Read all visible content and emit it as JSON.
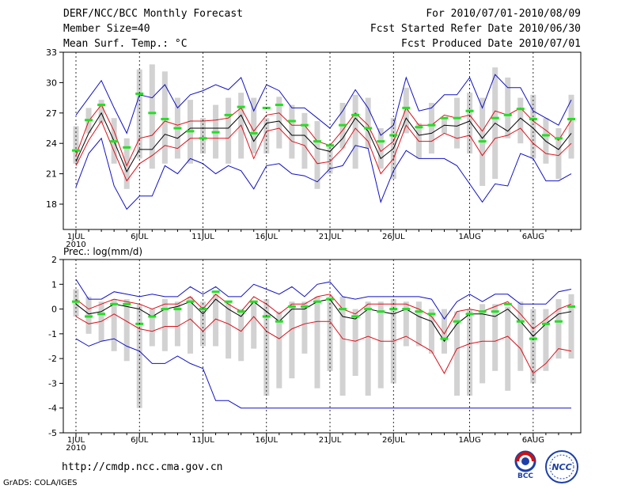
{
  "header": {
    "title": "DERF/NCC/BCC Monthly Forecast",
    "member_size": "Member Size=40",
    "variable": "Mean Surf. Temp.: °C",
    "period": "For 2010/07/01-2010/08/09",
    "started": "Fcst Started Refer Date 2010/06/30",
    "produced": "Fcst Produced Date 2010/07/01"
  },
  "colors": {
    "box": "#d2d2d2",
    "mean": "#000000",
    "spread": "#e0101a",
    "extreme": "#1010c8",
    "obs": "#22e022"
  },
  "chart_data": [
    {
      "type": "line",
      "title": "Mean Surf. Temp.: °C",
      "ylabel": "Mean Surf. Temp.: °C",
      "ylim": [
        15.5,
        33
      ],
      "yticks": [
        "18",
        "21",
        "24",
        "27",
        "30",
        "33"
      ],
      "ytick_values": [
        18,
        21,
        24,
        27,
        30,
        33
      ],
      "xtick_labels": [
        "1JUL",
        "6JUL",
        "11JUL",
        "16JUL",
        "21JUL",
        "26JUL",
        "1AUG",
        "6AUG"
      ],
      "xtick_days": [
        1,
        6,
        11,
        16,
        21,
        26,
        32,
        37
      ],
      "x_year_label": "2010",
      "days": [
        1,
        2,
        3,
        4,
        5,
        6,
        7,
        8,
        9,
        10,
        11,
        12,
        13,
        14,
        15,
        16,
        17,
        18,
        19,
        20,
        21,
        22,
        23,
        24,
        25,
        26,
        27,
        28,
        29,
        30,
        31,
        32,
        33,
        34,
        35,
        36,
        37,
        38,
        39,
        40
      ],
      "box_top": [
        25.7,
        27.5,
        28.3,
        26.5,
        24.5,
        31.3,
        31.8,
        31.1,
        28.5,
        28.3,
        26.5,
        27.8,
        28.5,
        29.0,
        28.5,
        26.5,
        28.6,
        27.8,
        27.0,
        26.2,
        23.8,
        28.0,
        28.8,
        28.5,
        25.5,
        26.5,
        29.5,
        26.0,
        28.0,
        26.5,
        28.5,
        29.0,
        28.5,
        31.5,
        30.5,
        28.5,
        28.8,
        26.5,
        25.5,
        28.8
      ],
      "box_bottom": [
        22.0,
        25.0,
        26.0,
        22.0,
        19.5,
        22.5,
        21.5,
        22.0,
        22.5,
        22.0,
        23.0,
        22.5,
        22.0,
        22.5,
        23.0,
        23.0,
        23.5,
        22.5,
        21.5,
        19.5,
        21.0,
        23.5,
        21.5,
        23.5,
        21.5,
        20.5,
        25.0,
        22.5,
        23.0,
        25.0,
        23.5,
        23.0,
        19.8,
        20.5,
        24.5,
        24.0,
        22.5,
        22.0,
        20.5,
        22.5
      ],
      "max": [
        26.8,
        28.5,
        30.2,
        27.5,
        25.0,
        28.8,
        28.5,
        29.8,
        27.5,
        28.8,
        29.2,
        29.8,
        29.3,
        30.5,
        27.2,
        29.8,
        29.2,
        27.5,
        27.5,
        26.5,
        25.5,
        27.2,
        29.3,
        27.5,
        24.8,
        25.8,
        30.5,
        27.2,
        27.5,
        28.8,
        28.8,
        30.5,
        27.5,
        30.8,
        29.5,
        29.5,
        27.2,
        26.5,
        25.8,
        28.3
      ],
      "spread_hi": [
        22.8,
        26.2,
        27.8,
        25.2,
        21.8,
        24.5,
        24.8,
        26.2,
        25.8,
        26.2,
        26.2,
        26.3,
        26.5,
        27.5,
        25.2,
        26.8,
        27.0,
        25.8,
        25.8,
        24.2,
        23.8,
        25.3,
        27.0,
        25.8,
        23.2,
        24.2,
        27.5,
        25.8,
        25.8,
        26.8,
        26.5,
        26.8,
        25.2,
        27.2,
        26.8,
        27.5,
        26.2,
        25.3,
        24.3,
        26.3
      ],
      "mean": [
        22.2,
        25.0,
        27.0,
        24.2,
        21.2,
        23.4,
        23.4,
        24.9,
        24.5,
        25.5,
        25.5,
        25.5,
        25.5,
        26.8,
        24.2,
        26.0,
        26.2,
        24.8,
        24.8,
        23.5,
        23.2,
        24.5,
        26.5,
        25.2,
        22.5,
        23.5,
        26.5,
        24.8,
        25.0,
        25.8,
        25.7,
        26.2,
        24.5,
        26.0,
        25.2,
        26.5,
        25.5,
        24.2,
        23.4,
        25.0
      ],
      "spread_lo": [
        21.8,
        24.3,
        26.2,
        23.2,
        20.3,
        22.0,
        22.8,
        23.8,
        23.5,
        24.5,
        24.5,
        24.5,
        24.5,
        25.8,
        22.5,
        25.2,
        25.5,
        24.2,
        23.8,
        22.0,
        22.2,
        23.5,
        25.5,
        24.2,
        21.0,
        22.5,
        25.8,
        24.2,
        24.2,
        25.0,
        24.5,
        24.8,
        22.8,
        24.5,
        24.8,
        25.5,
        24.0,
        23.0,
        22.8,
        24.0
      ],
      "min": [
        19.7,
        23.0,
        24.5,
        19.8,
        17.5,
        18.8,
        18.8,
        21.8,
        21.0,
        22.5,
        22.0,
        21.0,
        21.8,
        21.3,
        19.5,
        21.8,
        22.0,
        21.0,
        20.8,
        20.2,
        21.5,
        21.8,
        23.8,
        23.5,
        18.2,
        21.3,
        23.3,
        22.5,
        22.5,
        22.5,
        21.8,
        20.0,
        18.2,
        20.0,
        19.8,
        23.0,
        22.5,
        20.3,
        20.3,
        21.0
      ],
      "obs": [
        23.3,
        26.3,
        27.8,
        24.2,
        23.6,
        28.9,
        27.0,
        26.4,
        25.5,
        25.2,
        24.5,
        25.1,
        26.8,
        27.6,
        25.0,
        27.5,
        27.8,
        26.2,
        25.8,
        24.2,
        23.8,
        25.8,
        26.8,
        25.5,
        24.2,
        24.8,
        27.5,
        25.6,
        25.8,
        26.5,
        26.5,
        27.2,
        24.2,
        26.5,
        26.8,
        27.4,
        26.4,
        24.8,
        24.5,
        26.4
      ]
    },
    {
      "type": "line",
      "title": "Prec.: log(mm/d)",
      "ylabel": "Prec.: log(mm/d)",
      "ylim": [
        -5,
        2
      ],
      "yticks": [
        "-5",
        "-4",
        "-3",
        "-2",
        "-1",
        "0",
        "1",
        "2"
      ],
      "ytick_values": [
        -5,
        -4,
        -3,
        -2,
        -1,
        0,
        1,
        2
      ],
      "xtick_labels": [
        "1JUL",
        "6JUL",
        "11JUL",
        "16JUL",
        "21JUL",
        "26JUL",
        "1AUG",
        "6AUG"
      ],
      "xtick_days": [
        1,
        6,
        11,
        16,
        21,
        26,
        32,
        37
      ],
      "x_year_label": "2010",
      "days": [
        1,
        2,
        3,
        4,
        5,
        6,
        7,
        8,
        9,
        10,
        11,
        12,
        13,
        14,
        15,
        16,
        17,
        18,
        19,
        20,
        21,
        22,
        23,
        24,
        25,
        26,
        27,
        28,
        29,
        30,
        31,
        32,
        33,
        34,
        35,
        36,
        37,
        38,
        39,
        40
      ],
      "box_top": [
        0.8,
        0.5,
        0.3,
        0.4,
        0.4,
        0.2,
        0.0,
        0.4,
        0.3,
        0.5,
        0.3,
        0.6,
        0.3,
        0.0,
        0.3,
        0.4,
        -0.1,
        0.3,
        0.3,
        0.5,
        0.5,
        0.5,
        0.0,
        0.3,
        0.3,
        0.4,
        0.3,
        0.3,
        0.0,
        0.0,
        -0.1,
        0.0,
        0.2,
        0.2,
        0.1,
        0.3,
        0.0,
        0.0,
        0.4,
        0.6
      ],
      "box_bottom": [
        -0.3,
        -1.0,
        -1.3,
        -1.7,
        -2.1,
        -4.0,
        -1.5,
        -1.7,
        -1.5,
        -1.8,
        -1.5,
        -1.5,
        -2.0,
        -2.1,
        -1.6,
        -3.5,
        -3.2,
        -2.8,
        -1.8,
        -3.2,
        -2.5,
        -3.5,
        -2.7,
        -3.5,
        -3.2,
        -3.0,
        -1.5,
        -1.5,
        -1.8,
        -1.8,
        -3.5,
        -3.5,
        -3.0,
        -2.5,
        -3.3,
        -2.5,
        -3.0,
        -2.5,
        -2.0,
        -2.0
      ],
      "max": [
        1.2,
        0.4,
        0.4,
        0.7,
        0.6,
        0.5,
        0.6,
        0.5,
        0.5,
        0.9,
        0.6,
        0.9,
        0.5,
        0.5,
        1.0,
        0.8,
        0.6,
        0.9,
        0.5,
        1.0,
        1.1,
        0.5,
        0.4,
        0.5,
        0.5,
        0.5,
        0.5,
        0.5,
        0.4,
        -0.4,
        0.3,
        0.6,
        0.3,
        0.6,
        0.6,
        0.2,
        0.2,
        0.2,
        0.7,
        0.8
      ],
      "spread_hi": [
        0.4,
        0.0,
        0.2,
        0.4,
        0.3,
        0.2,
        0.0,
        0.2,
        0.2,
        0.5,
        0.0,
        0.6,
        0.2,
        -0.1,
        0.5,
        0.2,
        -0.2,
        0.2,
        0.2,
        0.5,
        0.6,
        0.0,
        -0.2,
        0.2,
        0.2,
        0.2,
        0.2,
        0.0,
        -0.3,
        -1.0,
        -0.1,
        0.0,
        -0.1,
        0.1,
        0.3,
        -0.2,
        -0.8,
        -0.4,
        0.0,
        0.2
      ],
      "mean": [
        0.2,
        -0.2,
        -0.1,
        0.2,
        0.1,
        0.0,
        -0.3,
        0.0,
        0.1,
        0.3,
        -0.2,
        0.4,
        0.0,
        -0.3,
        0.3,
        -0.1,
        -0.5,
        0.0,
        0.0,
        0.3,
        0.4,
        -0.3,
        -0.4,
        0.0,
        -0.1,
        -0.2,
        0.0,
        -0.3,
        -0.5,
        -1.3,
        -0.6,
        -0.2,
        -0.2,
        -0.3,
        0.0,
        -0.5,
        -1.1,
        -0.6,
        -0.2,
        -0.1
      ],
      "spread_lo": [
        -0.3,
        -0.6,
        -0.5,
        -0.2,
        -0.5,
        -0.8,
        -0.9,
        -0.7,
        -0.7,
        -0.4,
        -0.9,
        -0.4,
        -0.6,
        -0.9,
        -0.3,
        -0.9,
        -1.2,
        -0.8,
        -0.6,
        -0.5,
        -0.5,
        -1.2,
        -1.3,
        -1.1,
        -1.3,
        -1.3,
        -1.1,
        -1.4,
        -1.7,
        -2.6,
        -1.6,
        -1.4,
        -1.3,
        -1.3,
        -1.1,
        -1.6,
        -2.6,
        -2.2,
        -1.6,
        -1.7
      ],
      "min": [
        -1.2,
        -1.5,
        -1.3,
        -1.2,
        -1.5,
        -1.7,
        -2.2,
        -2.2,
        -1.9,
        -2.2,
        -2.4,
        -3.7,
        -3.7,
        -4.0,
        -4.0,
        -4.0,
        -4.0,
        -4.0,
        -4.0,
        -4.0,
        -4.0,
        -4.0,
        -4.0,
        -4.0,
        -4.0,
        -4.0,
        -4.0,
        -4.0,
        -4.0,
        -4.0,
        -4.0,
        -4.0,
        -4.0,
        -4.0,
        -4.0,
        -4.0,
        -4.0,
        -4.0,
        -4.0,
        -4.0
      ],
      "obs": [
        0.3,
        -0.3,
        -0.2,
        0.2,
        0.2,
        -0.6,
        -0.3,
        0.0,
        0.0,
        0.3,
        0.0,
        0.7,
        0.3,
        -0.1,
        0.3,
        -0.3,
        -0.5,
        0.1,
        0.1,
        0.3,
        0.4,
        0.0,
        -0.3,
        0.0,
        -0.1,
        0.0,
        0.0,
        -0.1,
        -0.2,
        -1.2,
        -0.5,
        -0.2,
        -0.1,
        -0.1,
        0.2,
        -0.5,
        -1.2,
        -0.6,
        -0.5,
        0.1
      ]
    }
  ],
  "footer": {
    "url": "http://cmdp.ncc.cma.gov.cn",
    "grads": "GrADS: COLA/IGES",
    "logo_bcc": "BCC",
    "logo_ncc": "NCC"
  }
}
